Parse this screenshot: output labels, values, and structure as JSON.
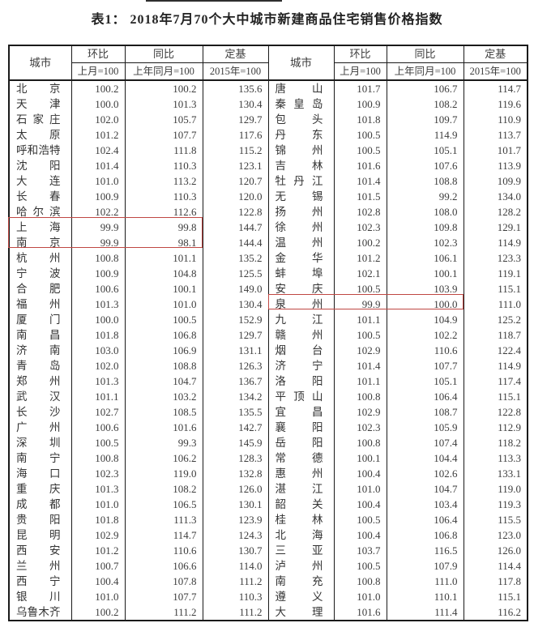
{
  "title": "表1： 2018年7月70个大中城市新建商品住宅销售价格指数",
  "colors": {
    "highlight_border": "#bf4743",
    "table_border": "#1a1a1a",
    "text": "#3d3d3d"
  },
  "table": {
    "headers": {
      "city": "城市",
      "mom": "环比",
      "mom_sub": "上月=100",
      "yoy": "同比",
      "yoy_sub": "上年同月=100",
      "fixed": "定基",
      "fixed_sub": "2015年=100"
    },
    "left_rows": [
      {
        "city": "北京",
        "mom": "100.2",
        "yoy": "100.2",
        "fixed": "135.6"
      },
      {
        "city": "天津",
        "mom": "100.0",
        "yoy": "101.3",
        "fixed": "130.4"
      },
      {
        "city": "石家庄",
        "mom": "102.0",
        "yoy": "105.7",
        "fixed": "129.7"
      },
      {
        "city": "太原",
        "mom": "101.2",
        "yoy": "107.7",
        "fixed": "117.6"
      },
      {
        "city": "呼和浩特",
        "mom": "102.4",
        "yoy": "111.8",
        "fixed": "115.2"
      },
      {
        "city": "沈阳",
        "mom": "101.4",
        "yoy": "110.3",
        "fixed": "123.1"
      },
      {
        "city": "大连",
        "mom": "101.0",
        "yoy": "113.2",
        "fixed": "120.7"
      },
      {
        "city": "长春",
        "mom": "100.9",
        "yoy": "110.3",
        "fixed": "120.0"
      },
      {
        "city": "哈尔滨",
        "mom": "102.2",
        "yoy": "112.6",
        "fixed": "122.8"
      },
      {
        "city": "上海",
        "mom": "99.9",
        "yoy": "99.8",
        "fixed": "144.7"
      },
      {
        "city": "南京",
        "mom": "99.9",
        "yoy": "98.1",
        "fixed": "144.4"
      },
      {
        "city": "杭州",
        "mom": "100.8",
        "yoy": "101.1",
        "fixed": "135.2"
      },
      {
        "city": "宁波",
        "mom": "100.9",
        "yoy": "104.8",
        "fixed": "125.5"
      },
      {
        "city": "合肥",
        "mom": "100.6",
        "yoy": "100.1",
        "fixed": "149.0"
      },
      {
        "city": "福州",
        "mom": "101.3",
        "yoy": "101.0",
        "fixed": "130.4"
      },
      {
        "city": "厦门",
        "mom": "100.0",
        "yoy": "100.5",
        "fixed": "152.9"
      },
      {
        "city": "南昌",
        "mom": "101.8",
        "yoy": "106.8",
        "fixed": "129.7"
      },
      {
        "city": "济南",
        "mom": "103.0",
        "yoy": "106.9",
        "fixed": "131.1"
      },
      {
        "city": "青岛",
        "mom": "102.0",
        "yoy": "108.8",
        "fixed": "126.3"
      },
      {
        "city": "郑州",
        "mom": "101.3",
        "yoy": "104.7",
        "fixed": "136.7"
      },
      {
        "city": "武汉",
        "mom": "101.1",
        "yoy": "103.2",
        "fixed": "134.2"
      },
      {
        "city": "长沙",
        "mom": "102.7",
        "yoy": "108.5",
        "fixed": "135.5"
      },
      {
        "city": "广州",
        "mom": "100.6",
        "yoy": "101.6",
        "fixed": "142.7"
      },
      {
        "city": "深圳",
        "mom": "100.5",
        "yoy": "99.3",
        "fixed": "145.9"
      },
      {
        "city": "南宁",
        "mom": "100.8",
        "yoy": "106.2",
        "fixed": "128.3"
      },
      {
        "city": "海口",
        "mom": "102.3",
        "yoy": "119.0",
        "fixed": "132.8"
      },
      {
        "city": "重庆",
        "mom": "101.3",
        "yoy": "108.2",
        "fixed": "126.0"
      },
      {
        "city": "成都",
        "mom": "101.0",
        "yoy": "106.5",
        "fixed": "130.1"
      },
      {
        "city": "贵阳",
        "mom": "101.8",
        "yoy": "111.3",
        "fixed": "123.9"
      },
      {
        "city": "昆明",
        "mom": "102.9",
        "yoy": "114.7",
        "fixed": "124.3"
      },
      {
        "city": "西安",
        "mom": "101.2",
        "yoy": "110.6",
        "fixed": "130.7"
      },
      {
        "city": "兰州",
        "mom": "100.7",
        "yoy": "106.6",
        "fixed": "114.0"
      },
      {
        "city": "西宁",
        "mom": "100.4",
        "yoy": "107.8",
        "fixed": "111.2"
      },
      {
        "city": "银川",
        "mom": "101.0",
        "yoy": "107.7",
        "fixed": "110.3"
      },
      {
        "city": "乌鲁木齐",
        "mom": "100.2",
        "yoy": "111.2",
        "fixed": "111.2"
      }
    ],
    "right_rows": [
      {
        "city": "唐山",
        "mom": "101.7",
        "yoy": "106.7",
        "fixed": "114.7"
      },
      {
        "city": "秦皇岛",
        "mom": "100.9",
        "yoy": "108.2",
        "fixed": "119.6"
      },
      {
        "city": "包头",
        "mom": "101.8",
        "yoy": "109.7",
        "fixed": "110.9"
      },
      {
        "city": "丹东",
        "mom": "100.5",
        "yoy": "114.9",
        "fixed": "113.7"
      },
      {
        "city": "锦州",
        "mom": "100.5",
        "yoy": "105.1",
        "fixed": "101.7"
      },
      {
        "city": "吉林",
        "mom": "101.6",
        "yoy": "107.6",
        "fixed": "113.9"
      },
      {
        "city": "牡丹江",
        "mom": "101.4",
        "yoy": "108.8",
        "fixed": "109.9"
      },
      {
        "city": "无锡",
        "mom": "101.5",
        "yoy": "99.2",
        "fixed": "134.0"
      },
      {
        "city": "扬州",
        "mom": "102.8",
        "yoy": "108.0",
        "fixed": "128.2"
      },
      {
        "city": "徐州",
        "mom": "102.3",
        "yoy": "109.8",
        "fixed": "129.1"
      },
      {
        "city": "温州",
        "mom": "100.2",
        "yoy": "102.3",
        "fixed": "114.9"
      },
      {
        "city": "金华",
        "mom": "101.2",
        "yoy": "106.1",
        "fixed": "123.3"
      },
      {
        "city": "蚌埠",
        "mom": "102.1",
        "yoy": "100.1",
        "fixed": "119.1"
      },
      {
        "city": "安庆",
        "mom": "100.5",
        "yoy": "103.9",
        "fixed": "115.1"
      },
      {
        "city": "泉州",
        "mom": "99.9",
        "yoy": "100.0",
        "fixed": "111.0"
      },
      {
        "city": "九江",
        "mom": "101.1",
        "yoy": "104.9",
        "fixed": "125.2"
      },
      {
        "city": "赣州",
        "mom": "100.5",
        "yoy": "102.2",
        "fixed": "118.7"
      },
      {
        "city": "烟台",
        "mom": "102.9",
        "yoy": "110.6",
        "fixed": "122.4"
      },
      {
        "city": "济宁",
        "mom": "101.4",
        "yoy": "107.7",
        "fixed": "114.9"
      },
      {
        "city": "洛阳",
        "mom": "101.1",
        "yoy": "105.1",
        "fixed": "117.4"
      },
      {
        "city": "平顶山",
        "mom": "100.8",
        "yoy": "106.4",
        "fixed": "115.1"
      },
      {
        "city": "宜昌",
        "mom": "102.9",
        "yoy": "108.7",
        "fixed": "122.8"
      },
      {
        "city": "襄阳",
        "mom": "102.3",
        "yoy": "105.9",
        "fixed": "112.9"
      },
      {
        "city": "岳阳",
        "mom": "100.8",
        "yoy": "107.4",
        "fixed": "118.2"
      },
      {
        "city": "常德",
        "mom": "100.1",
        "yoy": "104.4",
        "fixed": "113.3"
      },
      {
        "city": "惠州",
        "mom": "100.4",
        "yoy": "102.6",
        "fixed": "133.1"
      },
      {
        "city": "湛江",
        "mom": "101.0",
        "yoy": "104.7",
        "fixed": "119.0"
      },
      {
        "city": "韶关",
        "mom": "100.4",
        "yoy": "103.4",
        "fixed": "119.3"
      },
      {
        "city": "桂林",
        "mom": "100.5",
        "yoy": "106.4",
        "fixed": "115.5"
      },
      {
        "city": "北海",
        "mom": "100.4",
        "yoy": "106.8",
        "fixed": "123.0"
      },
      {
        "city": "三亚",
        "mom": "103.7",
        "yoy": "116.5",
        "fixed": "126.0"
      },
      {
        "city": "泸州",
        "mom": "100.5",
        "yoy": "107.9",
        "fixed": "114.4"
      },
      {
        "city": "南充",
        "mom": "100.8",
        "yoy": "111.0",
        "fixed": "117.8"
      },
      {
        "city": "遵义",
        "mom": "101.0",
        "yoy": "110.1",
        "fixed": "115.1"
      },
      {
        "city": "大理",
        "mom": "101.6",
        "yoy": "111.4",
        "fixed": "116.2"
      }
    ]
  },
  "highlights": [
    {
      "cities": "上海、南京",
      "columns": "城市/环比/同比"
    },
    {
      "cities": "泉州",
      "columns": "城市/环比/同比"
    }
  ]
}
